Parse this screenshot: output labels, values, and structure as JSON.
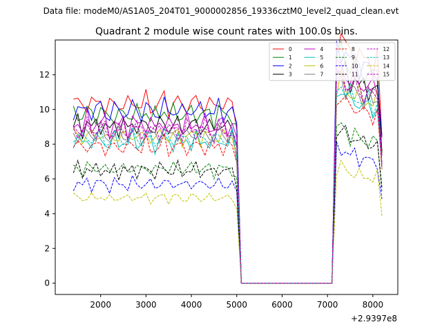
{
  "figure": {
    "suptitle": "Data file: modeM0/AS1A05_204T01_9000002856_19336cztM0_level2_quad_clean.evt",
    "offset_text": "+2.9397e8"
  },
  "chart_data": {
    "type": "line",
    "title": "Quadrant 2 module wise count rates with 100.0s bins.",
    "xlabel": "",
    "ylabel": "",
    "xlim": [
      1000,
      8550
    ],
    "ylim": [
      -0.65,
      14.0
    ],
    "x_offset": 293970000,
    "xticks": [
      2000,
      3000,
      4000,
      5000,
      6000,
      7000,
      8000
    ],
    "yticks": [
      0,
      2,
      4,
      6,
      8,
      10,
      12
    ],
    "legend": {
      "location": "top-right",
      "columns": 4
    },
    "profile": {
      "x": [
        1400,
        1500,
        1600,
        1700,
        1800,
        1900,
        2000,
        2100,
        2200,
        2300,
        2400,
        2500,
        2600,
        2700,
        2800,
        2900,
        3000,
        3100,
        3200,
        3300,
        3400,
        3500,
        3600,
        3700,
        3800,
        3900,
        4000,
        4100,
        4200,
        4300,
        4400,
        4500,
        4600,
        4700,
        4800,
        4900,
        5000,
        5100,
        5200,
        5300,
        5400,
        5500,
        5600,
        5700,
        5800,
        5900,
        6000,
        6100,
        6200,
        6300,
        6400,
        6500,
        6600,
        6700,
        6800,
        6900,
        7000,
        7100,
        7200,
        7300,
        7400,
        7500,
        7600,
        7700,
        7800,
        7900,
        8000,
        8100,
        8200
      ],
      "shape": [
        0.98,
        1.0,
        0.96,
        1.01,
        0.97,
        0.99,
        1.0,
        0.98,
        0.95,
        1.0,
        0.97,
        0.99,
        0.96,
        1.01,
        0.98,
        0.97,
        1.0,
        0.98,
        0.96,
        0.99,
        1.01,
        0.97,
        0.98,
        1.0,
        0.96,
        0.99,
        0.98,
        1.0,
        0.97,
        0.99,
        0.98,
        0.96,
        1.0,
        0.98,
        0.97,
        0.99,
        0.88,
        0.0,
        0.0,
        0.0,
        0.0,
        0.0,
        0.0,
        0.0,
        0.0,
        0.0,
        0.0,
        0.0,
        0.0,
        0.0,
        0.0,
        0.0,
        0.0,
        0.0,
        0.0,
        0.0,
        0.0,
        0.0,
        1.32,
        1.35,
        1.3,
        1.26,
        1.28,
        1.24,
        1.22,
        1.23,
        1.2,
        1.22,
        0.8
      ]
    },
    "series": [
      {
        "name": "0",
        "color": "#ff0000",
        "dash": "solid",
        "level": 10.5
      },
      {
        "name": "1",
        "color": "#008000",
        "dash": "solid",
        "level": 9.9
      },
      {
        "name": "2",
        "color": "#0000ff",
        "dash": "solid",
        "level": 10.1
      },
      {
        "name": "3",
        "color": "#000000",
        "dash": "solid",
        "level": 9.2
      },
      {
        "name": "4",
        "color": "#bf00bf",
        "dash": "solid",
        "level": 9.3
      },
      {
        "name": "5",
        "color": "#00bfbf",
        "dash": "solid",
        "level": 8.3
      },
      {
        "name": "6",
        "color": "#bfbf00",
        "dash": "solid",
        "level": 8.6
      },
      {
        "name": "7",
        "color": "#808080",
        "dash": "solid",
        "level": 8.7
      },
      {
        "name": "8",
        "color": "#ff0000",
        "dash": "dashed",
        "level": 8.0
      },
      {
        "name": "9",
        "color": "#008000",
        "dash": "dashed",
        "level": 6.7
      },
      {
        "name": "10",
        "color": "#0000ff",
        "dash": "dashed",
        "level": 5.8
      },
      {
        "name": "11",
        "color": "#000000",
        "dash": "dashed",
        "level": 6.6
      },
      {
        "name": "12",
        "color": "#bf00bf",
        "dash": "dashed",
        "level": 9.0
      },
      {
        "name": "13",
        "color": "#00bfbf",
        "dash": "dashed",
        "level": 8.5
      },
      {
        "name": "14",
        "color": "#bfbf00",
        "dash": "dashed",
        "level": 5.0
      },
      {
        "name": "15",
        "color": "#bf00bf",
        "dash": "dashed",
        "level": 8.9
      }
    ]
  }
}
